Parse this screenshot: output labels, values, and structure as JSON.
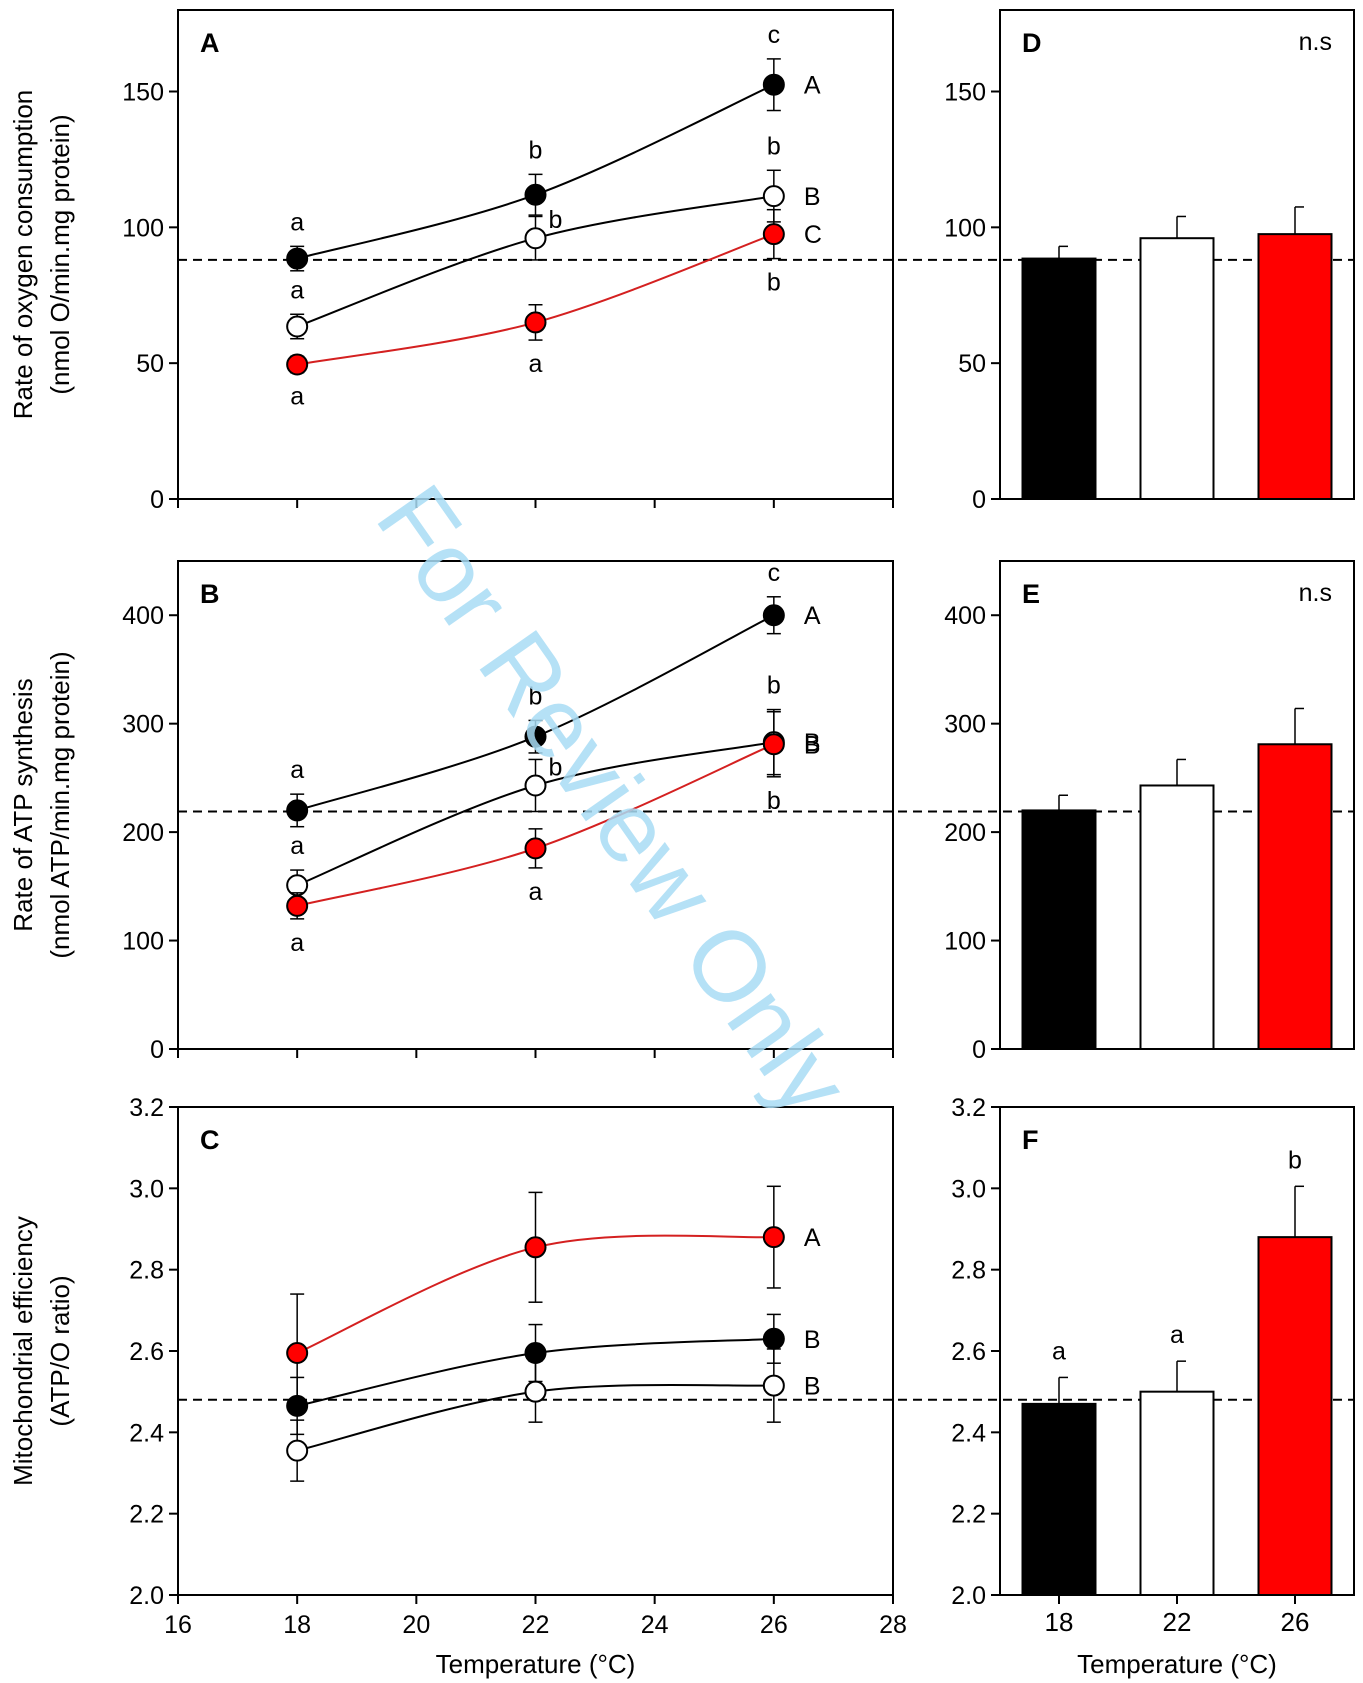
{
  "watermark": "For Review Only",
  "colors": {
    "black": "#000000",
    "white": "#ffffff",
    "red": "#ff0000",
    "redLine": "#d42020",
    "watermark": "#a8dcf4"
  },
  "chart_data": [
    {
      "panel": "A",
      "type": "line",
      "ylabel1": "Rate of oxygen consumption",
      "ylabel2": "(nmol O/min.mg protein)",
      "ylim": [
        0,
        180
      ],
      "yticks": [
        "0",
        "50",
        "100",
        "150"
      ],
      "xlim": [
        16,
        28
      ],
      "xticks": [],
      "xlabel": "",
      "refline": 88,
      "series": [
        {
          "color": "black",
          "x": [
            18,
            22,
            26
          ],
          "y": [
            88.5,
            112,
            152.5
          ],
          "err": [
            4.5,
            7.5,
            9.5
          ],
          "groupLabel": "A",
          "letters": [
            {
              "x": 18,
              "t": "a",
              "pos": "above"
            },
            {
              "x": 22,
              "t": "b",
              "pos": "above"
            },
            {
              "x": 26,
              "t": "c",
              "pos": "above"
            }
          ]
        },
        {
          "color": "white",
          "x": [
            18,
            22,
            26
          ],
          "y": [
            63.5,
            96,
            111.5
          ],
          "err": [
            4.5,
            8,
            9.5
          ],
          "groupLabel": "B",
          "letters": [
            {
              "x": 18,
              "t": "a",
              "pos": "above"
            },
            {
              "x": 22,
              "t": "b",
              "pos": "right"
            },
            {
              "x": 26,
              "t": "b",
              "pos": "above"
            }
          ]
        },
        {
          "color": "red",
          "x": [
            18,
            22,
            26
          ],
          "y": [
            49.5,
            65,
            97.5
          ],
          "err": [
            3,
            6.5,
            9
          ],
          "groupLabel": "C",
          "letters": [
            {
              "x": 18,
              "t": "a",
              "pos": "below"
            },
            {
              "x": 22,
              "t": "a",
              "pos": "below"
            },
            {
              "x": 26,
              "t": "b",
              "pos": "below"
            }
          ]
        }
      ]
    },
    {
      "panel": "B",
      "type": "line",
      "ylabel1": "Rate of ATP synthesis",
      "ylabel2": "(nmol ATP/min.mg protein)",
      "ylim": [
        0,
        450
      ],
      "yticks": [
        "0",
        "100",
        "200",
        "300",
        "400"
      ],
      "xlim": [
        16,
        28
      ],
      "xticks": [],
      "xlabel": "",
      "refline": 219,
      "series": [
        {
          "color": "black",
          "x": [
            18,
            22,
            26
          ],
          "y": [
            220,
            288,
            400
          ],
          "err": [
            15,
            15,
            17
          ],
          "groupLabel": "A",
          "letters": [
            {
              "x": 18,
              "t": "a",
              "pos": "above"
            },
            {
              "x": 22,
              "t": "b",
              "pos": "above"
            },
            {
              "x": 26,
              "t": "c",
              "pos": "above"
            }
          ]
        },
        {
          "color": "white",
          "x": [
            18,
            22,
            26
          ],
          "y": [
            151,
            243,
            283
          ],
          "err": [
            14,
            24,
            30
          ],
          "groupLabel": "B",
          "letters": [
            {
              "x": 18,
              "t": "a",
              "pos": "above"
            },
            {
              "x": 22,
              "t": "b",
              "pos": "right"
            },
            {
              "x": 26,
              "t": "b",
              "pos": "above"
            }
          ]
        },
        {
          "color": "red",
          "x": [
            18,
            22,
            26
          ],
          "y": [
            132,
            185,
            281
          ],
          "err": [
            12,
            18,
            30
          ],
          "groupLabel": "B",
          "letters": [
            {
              "x": 18,
              "t": "a",
              "pos": "below"
            },
            {
              "x": 22,
              "t": "a",
              "pos": "below"
            },
            {
              "x": 26,
              "t": "b",
              "pos": "below"
            }
          ]
        }
      ]
    },
    {
      "panel": "C",
      "type": "line",
      "ylabel1": "Mitochondrial efficiency",
      "ylabel2": "(ATP/O ratio)",
      "ylim": [
        2.0,
        3.2
      ],
      "yticks": [
        "2.0",
        "2.2",
        "2.4",
        "2.6",
        "2.8",
        "3.0",
        "3.2"
      ],
      "xlim": [
        16,
        28
      ],
      "xticks": [
        "16",
        "18",
        "20",
        "22",
        "24",
        "26",
        "28"
      ],
      "xlabel": "Temperature (°C)",
      "refline": 2.48,
      "series": [
        {
          "color": "red",
          "x": [
            18,
            22,
            26
          ],
          "y": [
            2.595,
            2.855,
            2.88
          ],
          "err": [
            0.145,
            0.135,
            0.125
          ],
          "groupLabel": "A",
          "letters": []
        },
        {
          "color": "black",
          "x": [
            18,
            22,
            26
          ],
          "y": [
            2.465,
            2.595,
            2.63
          ],
          "err": [
            0.07,
            0.07,
            0.06
          ],
          "groupLabel": "B",
          "letters": []
        },
        {
          "color": "white",
          "x": [
            18,
            22,
            26
          ],
          "y": [
            2.355,
            2.5,
            2.515
          ],
          "err": [
            0.075,
            0.075,
            0.09
          ],
          "groupLabel": "B",
          "letters": []
        }
      ]
    },
    {
      "panel": "D",
      "type": "bar",
      "ylim": [
        0,
        180
      ],
      "yticks": [
        "0",
        "50",
        "100",
        "150"
      ],
      "significance": "n.s",
      "categories": [
        "18",
        "22",
        "26"
      ],
      "xlabel": "",
      "refline": 88,
      "bars": [
        {
          "color": "black",
          "value": 88.5,
          "err": 4.5,
          "letter": ""
        },
        {
          "color": "white",
          "value": 96,
          "err": 8,
          "letter": ""
        },
        {
          "color": "red",
          "value": 97.5,
          "err": 10,
          "letter": ""
        }
      ]
    },
    {
      "panel": "E",
      "type": "bar",
      "ylim": [
        0,
        450
      ],
      "yticks": [
        "0",
        "100",
        "200",
        "300",
        "400"
      ],
      "significance": "n.s",
      "categories": [
        "18",
        "22",
        "26"
      ],
      "xlabel": "",
      "refline": 219,
      "bars": [
        {
          "color": "black",
          "value": 220,
          "err": 14,
          "letter": ""
        },
        {
          "color": "white",
          "value": 243,
          "err": 24,
          "letter": ""
        },
        {
          "color": "red",
          "value": 281,
          "err": 33,
          "letter": ""
        }
      ]
    },
    {
      "panel": "F",
      "type": "bar",
      "ylim": [
        2.0,
        3.2
      ],
      "yticks": [
        "2.0",
        "2.2",
        "2.4",
        "2.6",
        "2.8",
        "3.0",
        "3.2"
      ],
      "significance": "",
      "categories": [
        "18",
        "22",
        "26"
      ],
      "xlabel": "Temperature (°C)",
      "refline": 2.465,
      "bars": [
        {
          "color": "black",
          "value": 2.47,
          "err": 0.065,
          "letter": "a"
        },
        {
          "color": "white",
          "value": 2.5,
          "err": 0.075,
          "letter": "a"
        },
        {
          "color": "red",
          "value": 2.88,
          "err": 0.125,
          "letter": "b"
        }
      ]
    }
  ]
}
